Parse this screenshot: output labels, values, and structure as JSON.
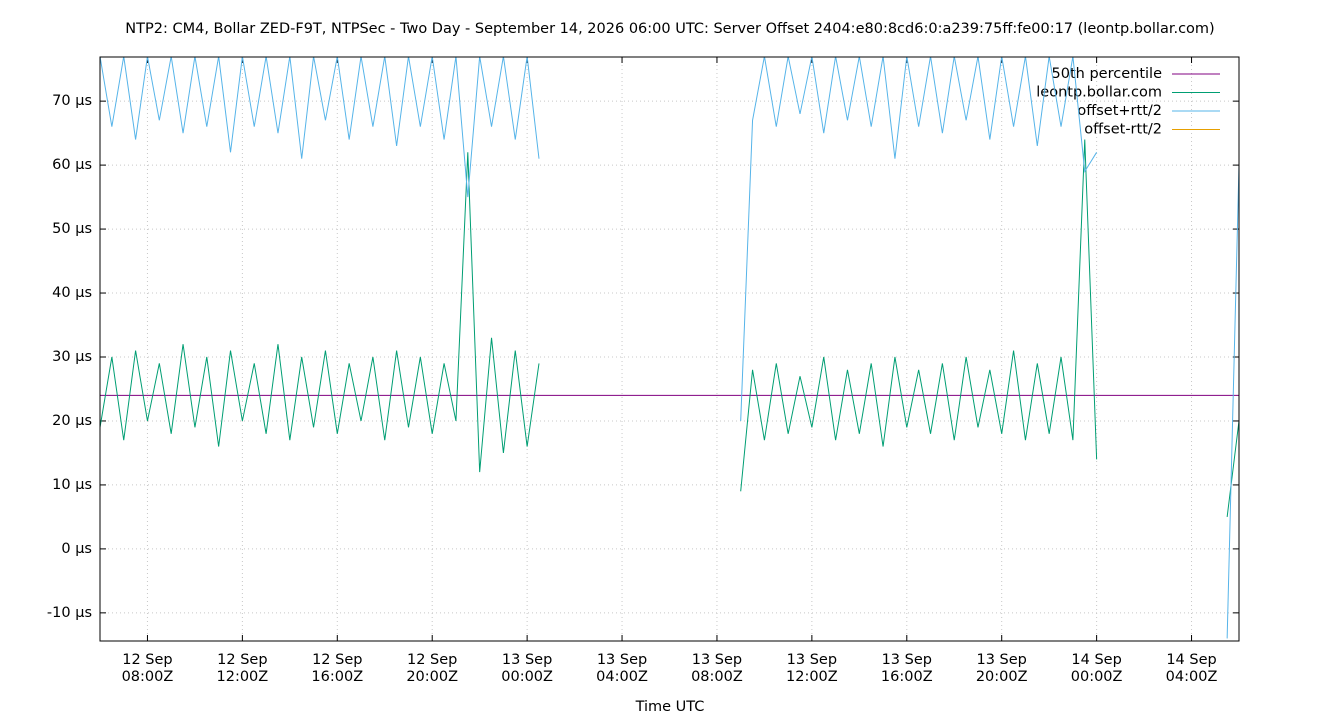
{
  "chart_data": {
    "type": "line",
    "title": "NTP2: CM4, Bollar ZED-F9T, NTPSec - Two Day - September 14, 2026 06:00 UTC: Server Offset 2404:e80:8cd6:0:a239:75ff:fe00:17 (leontp.bollar.com)",
    "x_label": "Time UTC",
    "grid": true,
    "legend": "top-right",
    "xlim": [
      6,
      54
    ],
    "xticks": [
      {
        "value": 8,
        "label": "12 Sep\n08:00Z"
      },
      {
        "value": 12,
        "label": "12 Sep\n12:00Z"
      },
      {
        "value": 16,
        "label": "12 Sep\n16:00Z"
      },
      {
        "value": 20,
        "label": "12 Sep\n20:00Z"
      },
      {
        "value": 24,
        "label": "13 Sep\n00:00Z"
      },
      {
        "value": 28,
        "label": "13 Sep\n04:00Z"
      },
      {
        "value": 32,
        "label": "13 Sep\n08:00Z"
      },
      {
        "value": 36,
        "label": "13 Sep\n12:00Z"
      },
      {
        "value": 40,
        "label": "13 Sep\n16:00Z"
      },
      {
        "value": 44,
        "label": "13 Sep\n20:00Z"
      },
      {
        "value": 48,
        "label": "14 Sep\n00:00Z"
      },
      {
        "value": 52,
        "label": "14 Sep\n04:00Z"
      }
    ],
    "ylim": [
      -14.4,
      76.9
    ],
    "yticks": [
      {
        "value": -10,
        "label": "-10 µs"
      },
      {
        "value": 0,
        "label": "0 µs"
      },
      {
        "value": 10,
        "label": "10 µs"
      },
      {
        "value": 20,
        "label": "20 µs"
      },
      {
        "value": 30,
        "label": "30 µs"
      },
      {
        "value": 40,
        "label": "40 µs"
      },
      {
        "value": 50,
        "label": "50 µs"
      },
      {
        "value": 60,
        "label": "60 µs"
      },
      {
        "value": 70,
        "label": "70 µs"
      }
    ],
    "x": [
      6,
      6.5,
      7,
      7.5,
      8,
      8.5,
      9,
      9.5,
      10,
      10.5,
      11,
      11.5,
      12,
      12.5,
      13,
      13.5,
      14,
      14.5,
      15,
      15.5,
      16,
      16.5,
      17,
      17.5,
      18,
      18.5,
      19,
      19.5,
      20,
      20.5,
      21,
      21.5,
      22,
      22.5,
      23,
      23.5,
      24,
      24.5,
      25,
      25.5,
      26,
      26.5,
      27,
      27.5,
      28,
      28.5,
      29,
      29.5,
      30,
      30.5,
      31,
      31.5,
      32,
      32.5,
      33,
      33.5,
      34,
      34.5,
      35,
      35.5,
      36,
      36.5,
      37,
      37.5,
      38,
      38.5,
      39,
      39.5,
      40,
      40.5,
      41,
      41.5,
      42,
      42.5,
      43,
      43.5,
      44,
      44.5,
      45,
      45.5,
      46,
      46.5,
      47,
      47.5,
      48,
      48.5,
      49,
      49.5,
      50,
      50.5,
      51,
      51.5,
      52,
      52.5,
      53,
      53.5,
      54
    ],
    "series": [
      {
        "name": "50th percentile",
        "color": "#800080",
        "x": [
          6,
          54
        ],
        "values": [
          24,
          24
        ]
      },
      {
        "name": "leontp.bollar.com",
        "color": "#009e73",
        "values": [
          19,
          30,
          17,
          31,
          20,
          29,
          18,
          32,
          19,
          30,
          16,
          31,
          20,
          29,
          18,
          32,
          17,
          30,
          19,
          31,
          18,
          29,
          20,
          30,
          17,
          31,
          19,
          30,
          18,
          29,
          20,
          62,
          12,
          33,
          15,
          31,
          16,
          29,
          null,
          null,
          null,
          null,
          null,
          null,
          null,
          null,
          null,
          null,
          null,
          null,
          null,
          null,
          null,
          null,
          9,
          28,
          17,
          29,
          18,
          27,
          19,
          30,
          17,
          28,
          18,
          29,
          16,
          30,
          19,
          28,
          18,
          29,
          17,
          30,
          19,
          28,
          18,
          31,
          17,
          29,
          18,
          30,
          17,
          64,
          14,
          null,
          null,
          null,
          null,
          null,
          null,
          null,
          null,
          null,
          null,
          5,
          20
        ]
      },
      {
        "name": "offset+rtt/2",
        "color": "#56b4e9",
        "values": [
          77,
          66,
          77,
          64,
          77,
          67,
          77,
          65,
          77,
          66,
          77,
          62,
          77,
          66,
          77,
          65,
          77,
          61,
          77,
          67,
          77,
          64,
          77,
          66,
          77,
          63,
          77,
          66,
          77,
          64,
          77,
          55,
          77,
          66,
          77,
          64,
          77,
          61,
          null,
          null,
          null,
          null,
          null,
          null,
          null,
          null,
          null,
          null,
          null,
          null,
          null,
          null,
          null,
          null,
          20,
          67,
          77,
          66,
          77,
          68,
          77,
          65,
          77,
          67,
          77,
          66,
          77,
          61,
          77,
          66,
          77,
          65,
          77,
          67,
          77,
          64,
          77,
          66,
          77,
          63,
          77,
          66,
          77,
          59,
          62,
          null,
          null,
          null,
          null,
          null,
          null,
          null,
          null,
          null,
          null,
          -14,
          60
        ]
      },
      {
        "name": "offset-rtt/2",
        "color": "#e69f00",
        "x": [],
        "values": []
      }
    ]
  }
}
